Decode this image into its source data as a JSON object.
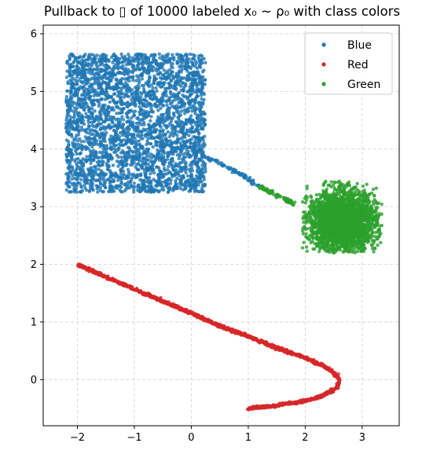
{
  "chart_data": {
    "type": "scatter",
    "title": "Pullback to ▯ of 10000 labeled x₀ ~ ρ₀ with class colors",
    "xlabel": "",
    "ylabel": "",
    "xlim": [
      -2.6,
      3.65
    ],
    "ylim": [
      -0.8,
      6.15
    ],
    "xticks": [
      -2,
      -1,
      0,
      1,
      2,
      3
    ],
    "xtick_labels": [
      "−2",
      "−1",
      "0",
      "1",
      "2",
      "3"
    ],
    "yticks": [
      0,
      1,
      2,
      3,
      4,
      5,
      6
    ],
    "ytick_labels": [
      "0",
      "1",
      "2",
      "3",
      "4",
      "5",
      "6"
    ],
    "grid": true,
    "legend_position": "top-right",
    "series": [
      {
        "name": "Blue",
        "color": "#1f77b4",
        "regions": [
          {
            "shape": "square",
            "x_range": [
              -2.2,
              0.25
            ],
            "y_range": [
              3.25,
              5.65
            ]
          },
          {
            "shape": "curve",
            "x": [
              0.15,
              0.5,
              0.9,
              1.2
            ],
            "y": [
              3.9,
              3.75,
              3.55,
              3.35
            ]
          }
        ]
      },
      {
        "name": "Red",
        "color": "#d62728",
        "curve": {
          "x": [
            -2.0,
            -1.5,
            -1.0,
            -0.5,
            0.0,
            0.5,
            1.0,
            1.5,
            2.0,
            2.3,
            2.5,
            2.6,
            2.55,
            2.3,
            2.0,
            1.5,
            1.0
          ],
          "y": [
            2.0,
            1.78,
            1.57,
            1.36,
            1.15,
            0.93,
            0.75,
            0.55,
            0.38,
            0.25,
            0.12,
            0.0,
            -0.15,
            -0.28,
            -0.37,
            -0.45,
            -0.5
          ]
        }
      },
      {
        "name": "Green",
        "color": "#2ca02c",
        "regions": [
          {
            "shape": "curve",
            "x": [
              1.2,
              1.5,
              1.8
            ],
            "y": [
              3.35,
              3.2,
              3.05
            ]
          },
          {
            "shape": "cluster",
            "center": [
              2.65,
              2.75
            ],
            "x_range": [
              1.95,
              3.35
            ],
            "y_range": [
              2.2,
              3.45
            ]
          }
        ]
      }
    ]
  }
}
